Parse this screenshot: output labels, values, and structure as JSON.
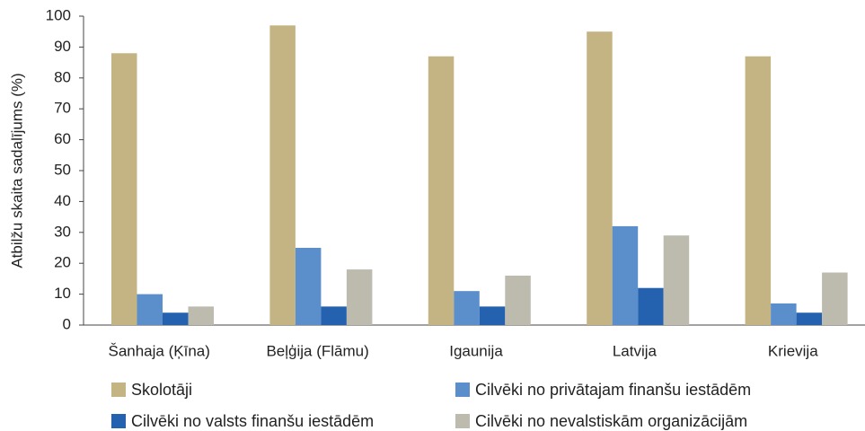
{
  "chart_data": {
    "type": "bar",
    "y_label": "Atbilžu skaita sadalījums (%)",
    "categories": [
      "Šanhaja (Ķīna)",
      "Beļģija (Flāmu)",
      "Igaunija",
      "Latvija",
      "Krievija"
    ],
    "series": [
      {
        "name": "Skolotāji",
        "color": "#c4b383",
        "values": [
          88,
          97,
          87,
          95,
          87
        ]
      },
      {
        "name": "Cilvēki no privātajam finanšu iestādēm",
        "color": "#5b8fcc",
        "values": [
          10,
          25,
          11,
          32,
          7
        ]
      },
      {
        "name": "Cilvēki no valsts finanšu iestādēm",
        "color": "#2462b0",
        "values": [
          4,
          6,
          6,
          12,
          4
        ]
      },
      {
        "name": "Cilvēki no nevalstiskām organizācijām",
        "color": "#bcbbae",
        "values": [
          6,
          18,
          16,
          29,
          17
        ]
      }
    ],
    "ylim": [
      0,
      100
    ],
    "yticks": [
      0,
      10,
      20,
      30,
      40,
      50,
      60,
      70,
      80,
      90,
      100
    ],
    "grid": false
  }
}
